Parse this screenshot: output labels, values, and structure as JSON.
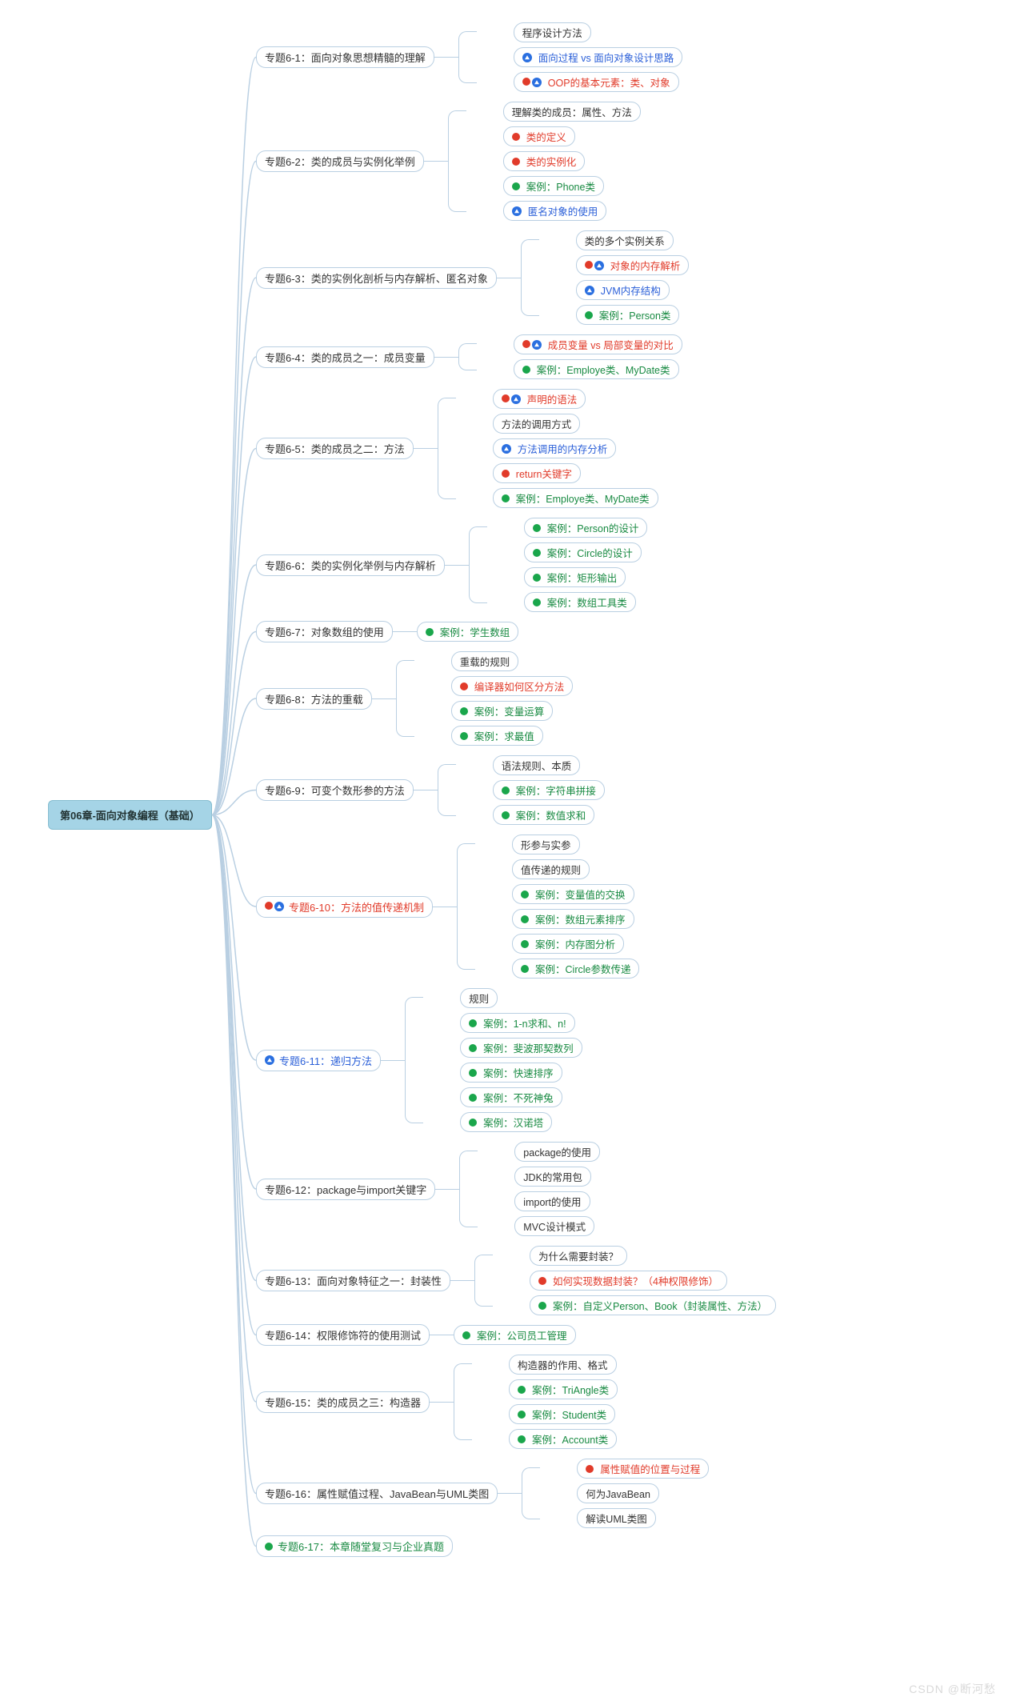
{
  "root": "第06章-面向对象编程（基础）",
  "watermark": "CSDN @断河愁",
  "colors": {
    "border": "#b9cfe2",
    "root_bg": "#a5d4e6",
    "red": "#e13b2a",
    "blue": "#2a5fd8",
    "green": "#188a42",
    "dot_red": "#e13b2a",
    "dot_green": "#1aa64b",
    "dot_blue": "#2a6fe0"
  },
  "topics": [
    {
      "id": "t1",
      "label": "专题6-1：面向对象思想精髓的理解",
      "markers": [],
      "style": "",
      "children": [
        {
          "label": "程序设计方法",
          "markers": [],
          "style": ""
        },
        {
          "label": "面向过程 vs 面向对象设计思路",
          "markers": [
            "b"
          ],
          "style": "blue"
        },
        {
          "label": "OOP的基本元素：类、对象",
          "markers": [
            "r",
            "b"
          ],
          "style": "red"
        }
      ]
    },
    {
      "id": "t2",
      "label": "专题6-2：类的成员与实例化举例",
      "markers": [],
      "style": "",
      "children": [
        {
          "label": "理解类的成员：属性、方法",
          "markers": [],
          "style": ""
        },
        {
          "label": "类的定义",
          "markers": [
            "r"
          ],
          "style": "red"
        },
        {
          "label": "类的实例化",
          "markers": [
            "r"
          ],
          "style": "red"
        },
        {
          "label": "案例：Phone类",
          "markers": [
            "g"
          ],
          "style": "green"
        },
        {
          "label": "匿名对象的使用",
          "markers": [
            "b"
          ],
          "style": "blue"
        }
      ]
    },
    {
      "id": "t3",
      "label": "专题6-3：类的实例化剖析与内存解析、匿名对象",
      "markers": [],
      "style": "",
      "children": [
        {
          "label": "类的多个实例关系",
          "markers": [],
          "style": ""
        },
        {
          "label": "对象的内存解析",
          "markers": [
            "r",
            "b"
          ],
          "style": "red"
        },
        {
          "label": "JVM内存结构",
          "markers": [
            "b"
          ],
          "style": "blue"
        },
        {
          "label": "案例：Person类",
          "markers": [
            "g"
          ],
          "style": "green"
        }
      ]
    },
    {
      "id": "t4",
      "label": "专题6-4：类的成员之一：成员变量",
      "markers": [],
      "style": "",
      "children": [
        {
          "label": "成员变量 vs 局部变量的对比",
          "markers": [
            "r",
            "b"
          ],
          "style": "red"
        },
        {
          "label": "案例：Employe类、MyDate类",
          "markers": [
            "g"
          ],
          "style": "green"
        }
      ]
    },
    {
      "id": "t5",
      "label": "专题6-5：类的成员之二：方法",
      "markers": [],
      "style": "",
      "children": [
        {
          "label": "声明的语法",
          "markers": [
            "r",
            "b"
          ],
          "style": "red"
        },
        {
          "label": "方法的调用方式",
          "markers": [],
          "style": ""
        },
        {
          "label": "方法调用的内存分析",
          "markers": [
            "b"
          ],
          "style": "blue"
        },
        {
          "label": "return关键字",
          "markers": [
            "r"
          ],
          "style": "red"
        },
        {
          "label": "案例：Employe类、MyDate类",
          "markers": [
            "g"
          ],
          "style": "green"
        }
      ]
    },
    {
      "id": "t6",
      "label": "专题6-6：类的实例化举例与内存解析",
      "markers": [],
      "style": "",
      "children": [
        {
          "label": "案例：Person的设计",
          "markers": [
            "g"
          ],
          "style": "green"
        },
        {
          "label": "案例：Circle的设计",
          "markers": [
            "g"
          ],
          "style": "green"
        },
        {
          "label": "案例：矩形输出",
          "markers": [
            "g"
          ],
          "style": "green"
        },
        {
          "label": "案例：数组工具类",
          "markers": [
            "g"
          ],
          "style": "green"
        }
      ]
    },
    {
      "id": "t7",
      "label": "专题6-7：对象数组的使用",
      "markers": [],
      "style": "",
      "children": [
        {
          "label": "案例：学生数组",
          "markers": [
            "g"
          ],
          "style": "green"
        }
      ]
    },
    {
      "id": "t8",
      "label": "专题6-8：方法的重载",
      "markers": [],
      "style": "",
      "children": [
        {
          "label": "重载的规则",
          "markers": [],
          "style": ""
        },
        {
          "label": "编译器如何区分方法",
          "markers": [
            "r"
          ],
          "style": "red"
        },
        {
          "label": "案例：变量运算",
          "markers": [
            "g"
          ],
          "style": "green"
        },
        {
          "label": "案例：求最值",
          "markers": [
            "g"
          ],
          "style": "green"
        }
      ]
    },
    {
      "id": "t9",
      "label": "专题6-9：可变个数形参的方法",
      "markers": [],
      "style": "",
      "children": [
        {
          "label": "语法规则、本质",
          "markers": [],
          "style": ""
        },
        {
          "label": "案例：字符串拼接",
          "markers": [
            "g"
          ],
          "style": "green"
        },
        {
          "label": "案例：数值求和",
          "markers": [
            "g"
          ],
          "style": "green"
        }
      ]
    },
    {
      "id": "t10",
      "label": "专题6-10：方法的值传递机制",
      "markers": [
        "r",
        "b"
      ],
      "style": "red",
      "children": [
        {
          "label": "形参与实参",
          "markers": [],
          "style": ""
        },
        {
          "label": "值传递的规则",
          "markers": [],
          "style": ""
        },
        {
          "label": "案例：变量值的交换",
          "markers": [
            "g"
          ],
          "style": "green"
        },
        {
          "label": "案例：数组元素排序",
          "markers": [
            "g"
          ],
          "style": "green"
        },
        {
          "label": "案例：内存图分析",
          "markers": [
            "g"
          ],
          "style": "green"
        },
        {
          "label": "案例：Circle参数传递",
          "markers": [
            "g"
          ],
          "style": "green"
        }
      ]
    },
    {
      "id": "t11",
      "label": "专题6-11：递归方法",
      "markers": [
        "b"
      ],
      "style": "blue",
      "children": [
        {
          "label": "规则",
          "markers": [],
          "style": ""
        },
        {
          "label": "案例：1-n求和、n!",
          "markers": [
            "g"
          ],
          "style": "green"
        },
        {
          "label": "案例：斐波那契数列",
          "markers": [
            "g"
          ],
          "style": "green"
        },
        {
          "label": "案例：快速排序",
          "markers": [
            "g"
          ],
          "style": "green"
        },
        {
          "label": "案例：不死神兔",
          "markers": [
            "g"
          ],
          "style": "green"
        },
        {
          "label": "案例：汉诺塔",
          "markers": [
            "g"
          ],
          "style": "green"
        }
      ]
    },
    {
      "id": "t12",
      "label": "专题6-12：package与import关键字",
      "markers": [],
      "style": "",
      "children": [
        {
          "label": "package的使用",
          "markers": [],
          "style": ""
        },
        {
          "label": "JDK的常用包",
          "markers": [],
          "style": ""
        },
        {
          "label": "import的使用",
          "markers": [],
          "style": ""
        },
        {
          "label": "MVC设计模式",
          "markers": [],
          "style": ""
        }
      ]
    },
    {
      "id": "t13",
      "label": "专题6-13：面向对象特征之一：封装性",
      "markers": [],
      "style": "",
      "children": [
        {
          "label": "为什么需要封装？",
          "markers": [],
          "style": ""
        },
        {
          "label": "如何实现数据封装？（4种权限修饰）",
          "markers": [
            "r"
          ],
          "style": "red"
        },
        {
          "label": "案例：自定义Person、Book（封装属性、方法）",
          "markers": [
            "g"
          ],
          "style": "green"
        }
      ]
    },
    {
      "id": "t14",
      "label": "专题6-14：权限修饰符的使用测试",
      "markers": [],
      "style": "",
      "children": [
        {
          "label": "案例：公司员工管理",
          "markers": [
            "g"
          ],
          "style": "green"
        }
      ]
    },
    {
      "id": "t15",
      "label": "专题6-15：类的成员之三：构造器",
      "markers": [],
      "style": "",
      "children": [
        {
          "label": "构造器的作用、格式",
          "markers": [],
          "style": ""
        },
        {
          "label": "案例：TriAngle类",
          "markers": [
            "g"
          ],
          "style": "green"
        },
        {
          "label": "案例：Student类",
          "markers": [
            "g"
          ],
          "style": "green"
        },
        {
          "label": "案例：Account类",
          "markers": [
            "g"
          ],
          "style": "green"
        }
      ]
    },
    {
      "id": "t16",
      "label": "专题6-16：属性赋值过程、JavaBean与UML类图",
      "markers": [],
      "style": "",
      "children": [
        {
          "label": "属性赋值的位置与过程",
          "markers": [
            "r"
          ],
          "style": "red"
        },
        {
          "label": "何为JavaBean",
          "markers": [],
          "style": ""
        },
        {
          "label": "解读UML类图",
          "markers": [],
          "style": ""
        }
      ]
    },
    {
      "id": "t17",
      "label": "专题6-17：本章随堂复习与企业真题",
      "markers": [
        "g"
      ],
      "style": "green",
      "children": []
    }
  ]
}
